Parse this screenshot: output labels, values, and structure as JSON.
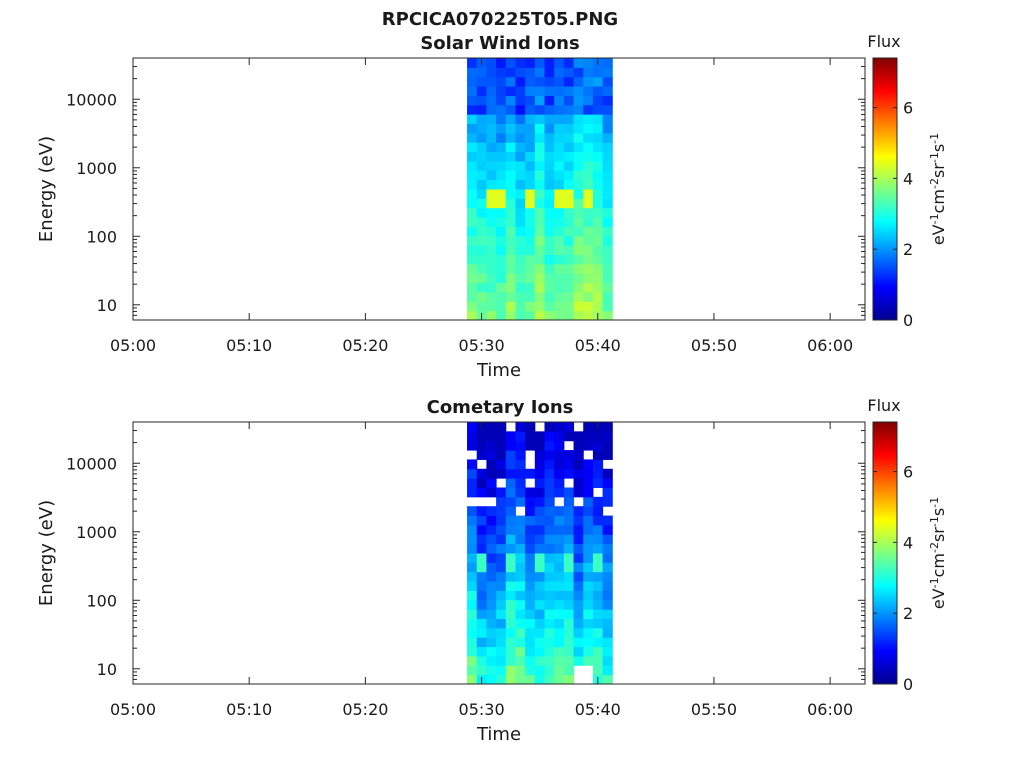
{
  "figure_title": "RPCICA070225T05.PNG",
  "chart_data": [
    {
      "type": "heatmap",
      "title": "Solar Wind Ions",
      "xlabel": "Time",
      "ylabel": "Energy (eV)",
      "x_ticks": [
        "05:00",
        "05:10",
        "05:20",
        "05:30",
        "05:40",
        "05:50",
        "06:00"
      ],
      "xlim": [
        "05:00",
        "06:03"
      ],
      "y_scale": "log",
      "y_ticks": [
        10,
        100,
        1000,
        10000
      ],
      "ylim": [
        6,
        40000
      ],
      "data_window": [
        "05:28:45",
        "05:41:15"
      ],
      "columns": 15,
      "energy_rows": 28,
      "colorbar": {
        "title": "Flux",
        "label": "eV-1cm-2sr-1s-1",
        "ticks": [
          0,
          2,
          4,
          6
        ],
        "range": [
          0,
          7.4
        ],
        "colormap": "jet"
      },
      "profile_note": "values ~1.5-2.5 at high energy, yellow band ~4.3 near 350 eV, ~3.5-4.5 at lowest energies"
    },
    {
      "type": "heatmap",
      "title": "Cometary Ions",
      "xlabel": "Time",
      "ylabel": "Energy (eV)",
      "x_ticks": [
        "05:00",
        "05:10",
        "05:20",
        "05:30",
        "05:40",
        "05:50",
        "06:00"
      ],
      "xlim": [
        "05:00",
        "06:03"
      ],
      "y_scale": "log",
      "y_ticks": [
        10,
        100,
        1000,
        10000
      ],
      "ylim": [
        6,
        40000
      ],
      "data_window": [
        "05:28:45",
        "05:41:15"
      ],
      "columns": 15,
      "energy_rows": 28,
      "colorbar": {
        "title": "Flux",
        "label": "eV-1cm-2sr-1s-1",
        "ticks": [
          0,
          2,
          4,
          6
        ],
        "range": [
          0,
          7.4
        ],
        "colormap": "jet"
      },
      "profile_note": "values ~0.5-1.5 at high energy with gaps (no data), ~3 near 350 eV, ~2.5-3.5 at lowest energies"
    }
  ]
}
